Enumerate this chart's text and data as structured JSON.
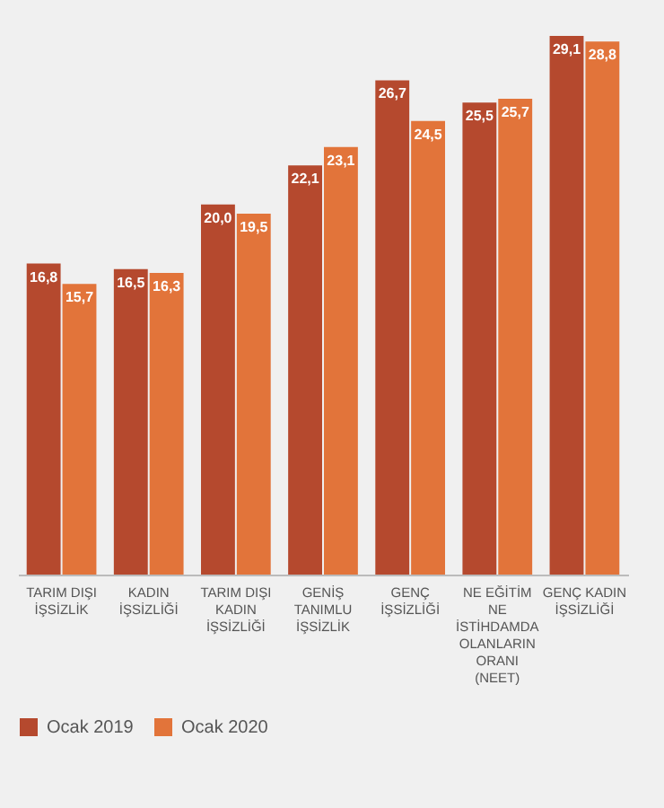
{
  "chart_data": {
    "type": "bar",
    "categories": [
      "TARIM DIŞI İŞSİZLİK",
      "KADIN İŞSİZLİĞİ",
      "TARIM DIŞI KADIN İŞSİZLİĞİ",
      "GENİŞ TANIMLU İŞSİZLİK",
      "GENÇ İŞSİZLİĞİ",
      "NE EĞİTİM NE İSTİHDAMDA OLANLARIN ORANI (NEET)",
      "GENÇ KADIN İŞSİZLİĞİ"
    ],
    "series": [
      {
        "name": "Ocak 2019",
        "color": "#b5492e",
        "values": [
          16.8,
          16.5,
          20.0,
          22.1,
          26.7,
          25.5,
          29.1
        ],
        "value_labels": [
          "16,8",
          "16,5",
          "20,0",
          "22,1",
          "26,7",
          "25,5",
          "29,1"
        ]
      },
      {
        "name": "Ocak 2020",
        "color": "#e2743a",
        "values": [
          15.7,
          16.3,
          19.5,
          23.1,
          24.5,
          25.7,
          28.8
        ],
        "value_labels": [
          "15,7",
          "16,3",
          "19,5",
          "23,1",
          "24,5",
          "25,7",
          "28,8"
        ]
      }
    ],
    "legend": "bottom",
    "grid": false
  }
}
